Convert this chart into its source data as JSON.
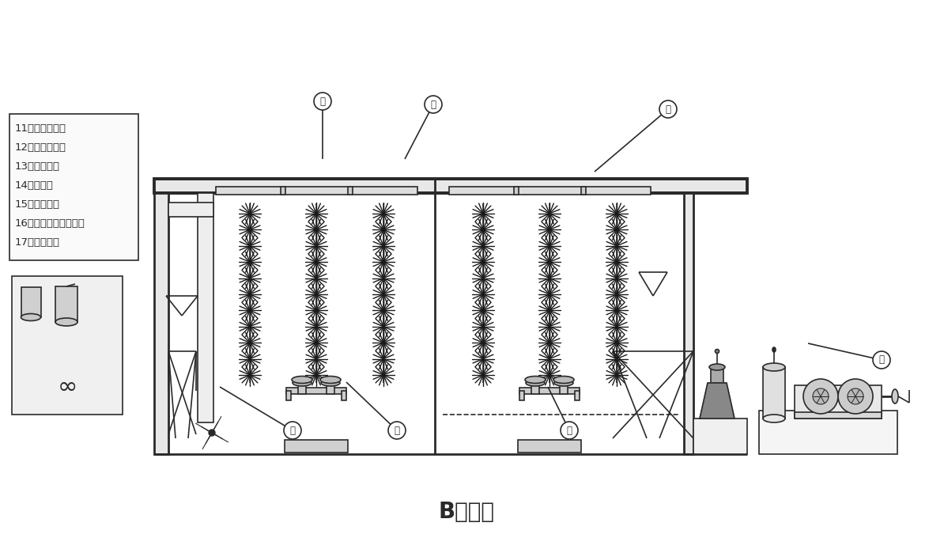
{
  "title": "B面剖视",
  "bg_color": "#ffffff",
  "line_color": "#2a2a2a",
  "legend_items": [
    "11、潜水推进器",
    "12、微孔曝气器",
    "13、集泥装置",
    "14、设备间",
    "15、溢流系统",
    "16、挂膜载体支撑系统",
    "17、挂膜载体"
  ],
  "title_fontsize": 20,
  "legend_fontsize": 9.5,
  "callouts": [
    [
      370,
      545,
      282,
      490,
      "11"
    ],
    [
      500,
      545,
      435,
      485,
      "12"
    ],
    [
      718,
      545,
      692,
      490,
      "13"
    ],
    [
      1115,
      455,
      1030,
      435,
      "14"
    ],
    [
      845,
      138,
      750,
      182,
      "15"
    ],
    [
      547,
      132,
      510,
      172,
      "16"
    ],
    [
      405,
      128,
      408,
      172,
      "17"
    ]
  ]
}
